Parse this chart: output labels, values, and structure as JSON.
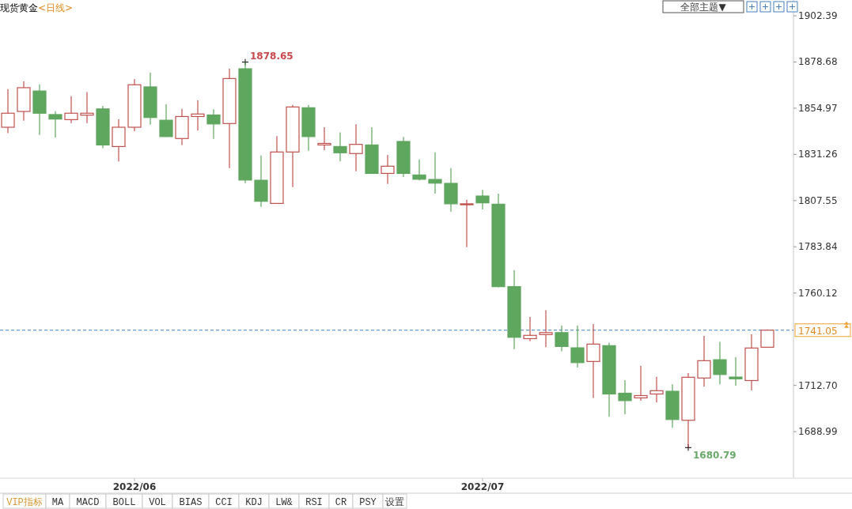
{
  "chart_data": {
    "type": "candlestick",
    "title": "现货黄金",
    "subtitle": "<日线>",
    "categories": [
      null,
      null,
      null,
      null,
      null,
      null,
      null,
      null,
      "2022/06",
      null,
      null,
      null,
      null,
      null,
      null,
      null,
      null,
      null,
      null,
      null,
      null,
      null,
      null,
      null,
      null,
      null,
      null,
      null,
      null,
      null,
      "2022/07",
      null,
      null,
      null,
      null,
      null,
      null,
      null,
      null,
      null,
      null,
      null,
      null,
      null,
      null,
      null,
      null,
      null,
      null
    ],
    "ohlc": [
      [
        1845.2,
        1864.8,
        1842.2,
        1852.4
      ],
      [
        1853.3,
        1868.8,
        1848.5,
        1865.5
      ],
      [
        1863.8,
        1867.2,
        1841.2,
        1852.4
      ],
      [
        1851.7,
        1853.4,
        1839.9,
        1849.4
      ],
      [
        1849.1,
        1861.1,
        1847.3,
        1852.4
      ],
      [
        1851.4,
        1863.2,
        1847.3,
        1852.4
      ],
      [
        1854.6,
        1856.1,
        1834.4,
        1836.1
      ],
      [
        1835.3,
        1849.4,
        1827.7,
        1845.2
      ],
      [
        1845.2,
        1869.9,
        1843.2,
        1867.0
      ],
      [
        1865.9,
        1873.3,
        1846.5,
        1850.2
      ],
      [
        1848.8,
        1857.1,
        1840.2,
        1840.4
      ],
      [
        1839.4,
        1854.6,
        1836.1,
        1850.7
      ],
      [
        1850.7,
        1859.1,
        1843.6,
        1852.0
      ],
      [
        1851.5,
        1854.4,
        1839.2,
        1846.9
      ],
      [
        1847.1,
        1875.3,
        1824.2,
        1870.2
      ],
      [
        1875.2,
        1878.65,
        1816.5,
        1818.1
      ],
      [
        1818.0,
        1830.7,
        1804.3,
        1807.2
      ],
      [
        1806.1,
        1840.6,
        1806.1,
        1832.5
      ],
      [
        1832.5,
        1856.7,
        1814.5,
        1855.6
      ],
      [
        1855.2,
        1856.7,
        1833.1,
        1840.4
      ],
      [
        1836.1,
        1845.2,
        1833.4,
        1836.9
      ],
      [
        1835.3,
        1842.6,
        1827.7,
        1832.1
      ],
      [
        1831.7,
        1846.7,
        1822.6,
        1836.4
      ],
      [
        1836.1,
        1845.2,
        1821.5,
        1821.5
      ],
      [
        1821.5,
        1831.0,
        1816.1,
        1825.2
      ],
      [
        1837.9,
        1840.2,
        1819.6,
        1821.5
      ],
      [
        1820.7,
        1828.7,
        1817.9,
        1818.5
      ],
      [
        1818.4,
        1832.3,
        1811.1,
        1816.5
      ],
      [
        1816.4,
        1824.2,
        1801.9,
        1805.9
      ],
      [
        1805.6,
        1808.0,
        1783.6,
        1805.9
      ],
      [
        1809.9,
        1813.1,
        1803.0,
        1806.4
      ],
      [
        1805.7,
        1811.1,
        1763.1,
        1763.4
      ],
      [
        1763.4,
        1771.9,
        1731.3,
        1737.4
      ],
      [
        1736.7,
        1747.8,
        1735.4,
        1738.4
      ],
      [
        1738.8,
        1751.3,
        1732.3,
        1739.8
      ],
      [
        1739.8,
        1743.5,
        1730.2,
        1732.7
      ],
      [
        1732.0,
        1743.5,
        1721.9,
        1724.4
      ],
      [
        1725.0,
        1744.2,
        1706.3,
        1733.9
      ],
      [
        1733.1,
        1734.7,
        1696.6,
        1708.3
      ],
      [
        1708.7,
        1715.4,
        1697.9,
        1704.9
      ],
      [
        1706.3,
        1722.8,
        1704.9,
        1707.5
      ],
      [
        1708.3,
        1717.1,
        1704.0,
        1710.0
      ],
      [
        1709.7,
        1713.3,
        1691.0,
        1695.2
      ],
      [
        1694.8,
        1719.0,
        1680.79,
        1716.9
      ],
      [
        1716.5,
        1738.1,
        1712.0,
        1725.4
      ],
      [
        1725.9,
        1735.1,
        1713.3,
        1718.3
      ],
      [
        1717.0,
        1727.3,
        1712.6,
        1716.1
      ],
      [
        1715.2,
        1739.0,
        1710.1,
        1731.9
      ],
      [
        1732.3,
        1741.5,
        1732.3,
        1741.05
      ]
    ],
    "colors": [
      "#c0504d",
      "#c0504d",
      "#5fa65f",
      "#5fa65f",
      "#c0504d",
      "#c0504d",
      "#5fa65f",
      "#c0504d",
      "#c0504d",
      "#5fa65f",
      "#5fa65f",
      "#c0504d",
      "#c0504d",
      "#5fa65f",
      "#c0504d",
      "#5fa65f",
      "#5fa65f",
      "#c0504d",
      "#c0504d",
      "#5fa65f",
      "#c0504d",
      "#5fa65f",
      "#c0504d",
      "#5fa65f",
      "#c0504d",
      "#5fa65f",
      "#5fa65f",
      "#5fa65f",
      "#5fa65f",
      "#c0504d",
      "#5fa65f",
      "#5fa65f",
      "#5fa65f",
      "#c0504d",
      "#c0504d",
      "#5fa65f",
      "#5fa65f",
      "#c0504d",
      "#5fa65f",
      "#5fa65f",
      "#c0504d",
      "#c0504d",
      "#5fa65f",
      "#c0504d",
      "#c0504d",
      "#5fa65f",
      "#5fa65f",
      "#c0504d",
      "#c0504d"
    ],
    "ylim": [
      1665.1,
      1910.5
    ],
    "yticks": [
      1688.99,
      {
        "value": 1712.7,
        "label": "1712.70"
      },
      1760.12,
      1783.84,
      1807.55,
      1831.26,
      1854.97,
      1878.68,
      1902.39
    ],
    "ref_lines": [
      {
        "axis": "y",
        "value": 1741.05,
        "label": "1741.05",
        "color": "#3b7fc4",
        "line_style": "dashed"
      }
    ],
    "annotations": [
      "1878.65",
      "1680.79",
      "全部主题▼",
      "VIP指标",
      "MA",
      "MACD",
      "BOLL",
      "VOL",
      "BIAS",
      "CCI",
      "KDJ",
      "LW&",
      "RSI",
      "CR",
      "PSY",
      "设置"
    ]
  }
}
